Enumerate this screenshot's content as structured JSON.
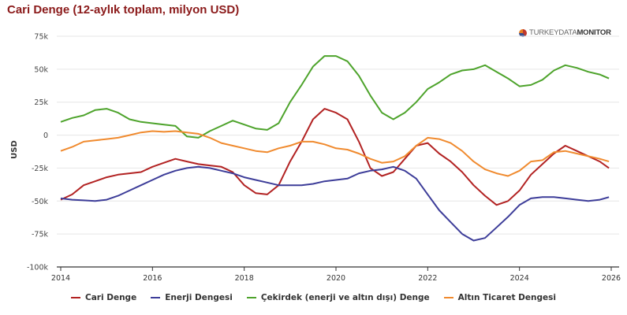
{
  "brand": {
    "light": "TURKEYDATA",
    "bold": "MONITOR"
  },
  "chart_data": {
    "type": "line",
    "title": "Cari Denge (12-aylık toplam, milyon USD)",
    "xlabel": "",
    "ylabel": "USD",
    "xlim": [
      2013.9,
      2026.15
    ],
    "ylim": [
      -100000,
      75000
    ],
    "x_ticks": [
      2014,
      2016,
      2018,
      2020,
      2022,
      2024,
      2026
    ],
    "x_tick_labels": [
      "2014",
      "2016",
      "2018",
      "2020",
      "2022",
      "2024",
      "2026"
    ],
    "y_ticks": [
      75000,
      50000,
      25000,
      0,
      -25000,
      -50000,
      -75000,
      -100000
    ],
    "y_tick_labels": [
      "75k",
      "50k",
      "25k",
      "0",
      "-25k",
      "-50k",
      "-75k",
      "-100k"
    ],
    "grid": true,
    "legend_position": "bottom",
    "series": [
      {
        "name": "Cari Denge",
        "color": "#b22222",
        "x": [
          2014.0,
          2014.25,
          2014.5,
          2014.75,
          2015.0,
          2015.25,
          2015.5,
          2015.75,
          2016.0,
          2016.25,
          2016.5,
          2016.75,
          2017.0,
          2017.25,
          2017.5,
          2017.75,
          2018.0,
          2018.25,
          2018.5,
          2018.75,
          2019.0,
          2019.25,
          2019.5,
          2019.75,
          2020.0,
          2020.25,
          2020.5,
          2020.75,
          2021.0,
          2021.25,
          2021.5,
          2021.75,
          2022.0,
          2022.25,
          2022.5,
          2022.75,
          2023.0,
          2023.25,
          2023.5,
          2023.75,
          2024.0,
          2024.25,
          2024.5,
          2024.75,
          2025.0,
          2025.25,
          2025.5,
          2025.75,
          2025.95
        ],
        "values": [
          -49000,
          -45000,
          -38000,
          -35000,
          -32000,
          -30000,
          -29000,
          -28000,
          -24000,
          -21000,
          -18000,
          -20000,
          -22000,
          -23000,
          -24000,
          -28000,
          -38000,
          -44000,
          -45000,
          -38000,
          -20000,
          -5000,
          12000,
          20000,
          17000,
          12000,
          -5000,
          -25000,
          -31000,
          -28000,
          -18000,
          -8000,
          -6000,
          -14000,
          -20000,
          -28000,
          -38000,
          -46000,
          -53000,
          -50000,
          -42000,
          -30000,
          -22000,
          -14000,
          -8000,
          -12000,
          -16000,
          -20000,
          -25000
        ]
      },
      {
        "name": "Enerji Dengesi",
        "color": "#3d3d99",
        "x": [
          2014.0,
          2014.25,
          2014.5,
          2014.75,
          2015.0,
          2015.25,
          2015.5,
          2015.75,
          2016.0,
          2016.25,
          2016.5,
          2016.75,
          2017.0,
          2017.25,
          2017.5,
          2017.75,
          2018.0,
          2018.25,
          2018.5,
          2018.75,
          2019.0,
          2019.25,
          2019.5,
          2019.75,
          2020.0,
          2020.25,
          2020.5,
          2020.75,
          2021.0,
          2021.25,
          2021.5,
          2021.75,
          2022.0,
          2022.25,
          2022.5,
          2022.75,
          2023.0,
          2023.25,
          2023.5,
          2023.75,
          2024.0,
          2024.25,
          2024.5,
          2024.75,
          2025.0,
          2025.25,
          2025.5,
          2025.75,
          2025.95
        ],
        "values": [
          -48000,
          -49000,
          -49500,
          -50000,
          -49000,
          -46000,
          -42000,
          -38000,
          -34000,
          -30000,
          -27000,
          -25000,
          -24000,
          -25000,
          -27000,
          -29000,
          -32000,
          -34000,
          -36000,
          -38000,
          -38000,
          -38000,
          -37000,
          -35000,
          -34000,
          -33000,
          -29000,
          -27000,
          -26000,
          -24000,
          -27000,
          -33000,
          -45000,
          -57000,
          -66000,
          -75000,
          -80000,
          -78000,
          -70000,
          -62000,
          -53000,
          -48000,
          -47000,
          -47000,
          -48000,
          -49000,
          -50000,
          -49000,
          -47000
        ]
      },
      {
        "name": "Çekirdek (enerji ve altın dışı) Denge",
        "color": "#4da32b",
        "x": [
          2014.0,
          2014.25,
          2014.5,
          2014.75,
          2015.0,
          2015.25,
          2015.5,
          2015.75,
          2016.0,
          2016.25,
          2016.5,
          2016.75,
          2017.0,
          2017.25,
          2017.5,
          2017.75,
          2018.0,
          2018.25,
          2018.5,
          2018.75,
          2019.0,
          2019.25,
          2019.5,
          2019.75,
          2020.0,
          2020.25,
          2020.5,
          2020.75,
          2021.0,
          2021.25,
          2021.5,
          2021.75,
          2022.0,
          2022.25,
          2022.5,
          2022.75,
          2023.0,
          2023.25,
          2023.5,
          2023.75,
          2024.0,
          2024.25,
          2024.5,
          2024.75,
          2025.0,
          2025.25,
          2025.5,
          2025.75,
          2025.95
        ],
        "values": [
          10000,
          13000,
          15000,
          19000,
          20000,
          17000,
          12000,
          10000,
          9000,
          8000,
          7000,
          -1000,
          -2000,
          3000,
          7000,
          11000,
          8000,
          5000,
          4000,
          9000,
          25000,
          38000,
          52000,
          60000,
          60000,
          56000,
          45000,
          30000,
          17000,
          12000,
          17000,
          25000,
          35000,
          40000,
          46000,
          49000,
          50000,
          53000,
          48000,
          43000,
          37000,
          38000,
          42000,
          49000,
          53000,
          51000,
          48000,
          46000,
          43000
        ]
      },
      {
        "name": "Altın Ticaret Dengesi",
        "color": "#f08a2e",
        "x": [
          2014.0,
          2014.25,
          2014.5,
          2014.75,
          2015.0,
          2015.25,
          2015.5,
          2015.75,
          2016.0,
          2016.25,
          2016.5,
          2016.75,
          2017.0,
          2017.25,
          2017.5,
          2017.75,
          2018.0,
          2018.25,
          2018.5,
          2018.75,
          2019.0,
          2019.25,
          2019.5,
          2019.75,
          2020.0,
          2020.25,
          2020.5,
          2020.75,
          2021.0,
          2021.25,
          2021.5,
          2021.75,
          2022.0,
          2022.25,
          2022.5,
          2022.75,
          2023.0,
          2023.25,
          2023.5,
          2023.75,
          2024.0,
          2024.25,
          2024.5,
          2024.75,
          2025.0,
          2025.25,
          2025.5,
          2025.75,
          2025.95
        ],
        "values": [
          -12000,
          -9000,
          -5000,
          -4000,
          -3000,
          -2000,
          0,
          2000,
          3000,
          2500,
          3000,
          2000,
          1000,
          -2000,
          -6000,
          -8000,
          -10000,
          -12000,
          -13000,
          -10000,
          -8000,
          -5000,
          -5000,
          -7000,
          -10000,
          -11000,
          -14000,
          -18000,
          -21000,
          -20000,
          -16000,
          -8000,
          -2000,
          -3000,
          -6000,
          -12000,
          -20000,
          -26000,
          -29000,
          -31000,
          -27000,
          -20000,
          -19000,
          -13000,
          -12000,
          -14000,
          -16000,
          -18000,
          -20000
        ]
      }
    ]
  }
}
